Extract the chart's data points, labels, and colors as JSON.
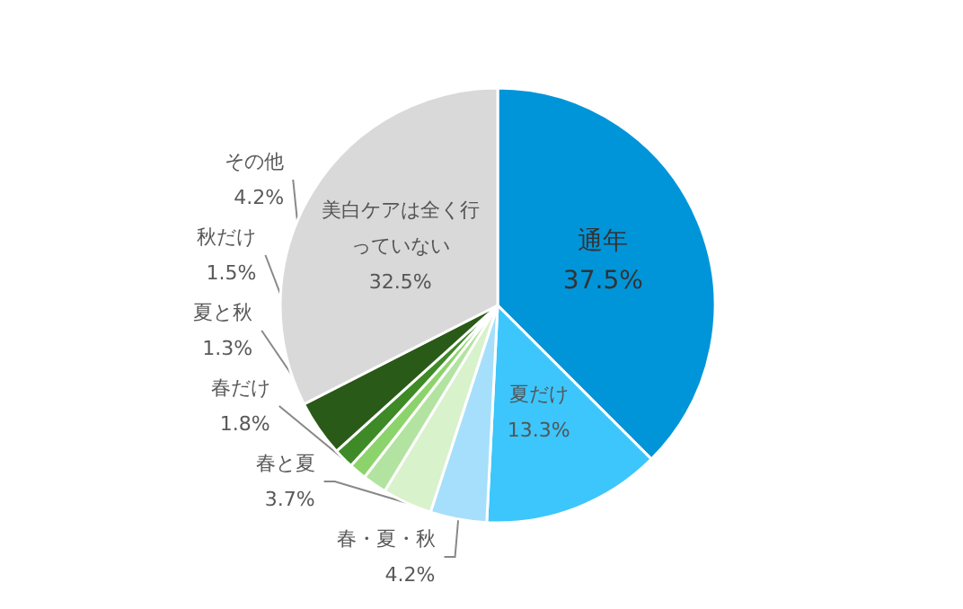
{
  "chart_data": {
    "type": "pie",
    "categories": [
      "通年",
      "夏だけ",
      "春・夏・秋",
      "春と夏",
      "春だけ",
      "夏と秋",
      "秋だけ",
      "その他",
      "美白ケアは全く行っていない"
    ],
    "values": [
      37.5,
      13.3,
      4.2,
      3.7,
      1.8,
      1.3,
      1.5,
      4.2,
      32.5
    ],
    "colors": [
      "#0095d9",
      "#3cc6fc",
      "#a6dffb",
      "#d8f2cc",
      "#b3e3a0",
      "#8dd36c",
      "#3e8a27",
      "#2a5a17",
      "#d9d9d9"
    ],
    "value_labels": [
      "37.5%",
      "13.3%",
      "4.2%",
      "3.7%",
      "1.8%",
      "1.3%",
      "1.5%",
      "4.2%",
      "32.5%"
    ],
    "legend": false
  }
}
